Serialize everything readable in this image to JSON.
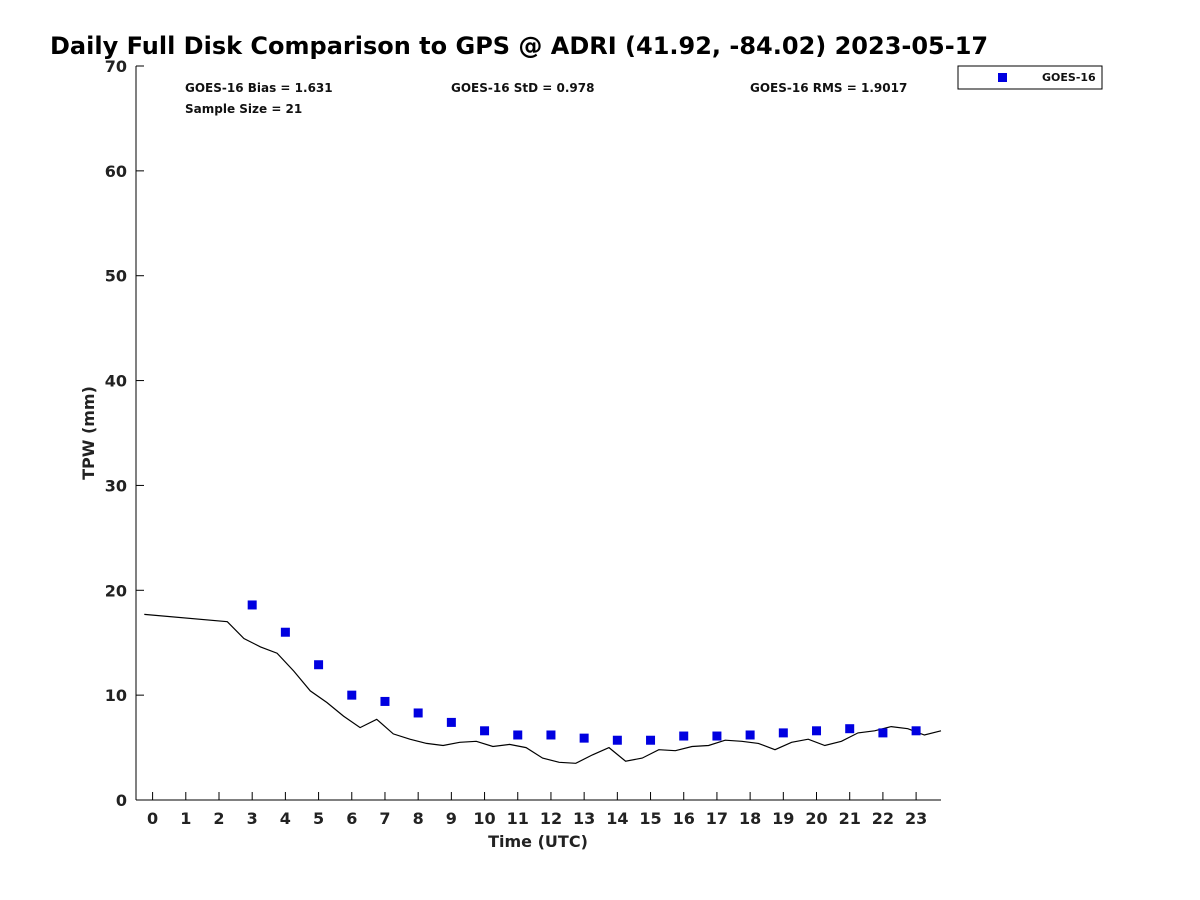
{
  "chart_data": {
    "type": "scatter",
    "title": "Daily Full Disk Comparison to GPS @ ADRI (41.92, -84.02) 2023-05-17",
    "xlabel": "Time (UTC)",
    "ylabel": "TPW (mm)",
    "xlim": [
      -0.5,
      23.75
    ],
    "ylim": [
      0,
      70
    ],
    "x_ticks": [
      0,
      1,
      2,
      3,
      4,
      5,
      6,
      7,
      8,
      9,
      10,
      11,
      12,
      13,
      14,
      15,
      16,
      17,
      18,
      19,
      20,
      21,
      22,
      23
    ],
    "y_ticks": [
      0,
      10,
      20,
      30,
      40,
      50,
      60,
      70
    ],
    "grid": false,
    "legend_position": "top-right",
    "stats": {
      "bias": "GOES-16 Bias = 1.631",
      "std": "GOES-16 StD = 0.978",
      "rms": "GOES-16 RMS = 1.9017",
      "sample": "Sample Size = 21"
    },
    "series": [
      {
        "name": "GOES-16",
        "type": "scatter",
        "color": "#0000e0",
        "marker": "square",
        "x": [
          3,
          4,
          5,
          6,
          7,
          8,
          9,
          10,
          11,
          12,
          13,
          14,
          15,
          16,
          17,
          18,
          19,
          20,
          21,
          22,
          23
        ],
        "y": [
          18.6,
          16.0,
          12.9,
          10.0,
          9.4,
          8.3,
          7.4,
          6.6,
          6.2,
          6.2,
          5.9,
          5.7,
          5.7,
          6.1,
          6.1,
          6.2,
          6.4,
          6.6,
          6.8,
          6.4,
          6.6
        ]
      },
      {
        "type": "line",
        "color": "#000000",
        "x": [
          -0.25,
          2.25,
          2.75,
          3.25,
          3.75,
          4.25,
          4.75,
          5.25,
          5.75,
          6.25,
          6.75,
          7.25,
          7.75,
          8.25,
          8.75,
          9.25,
          9.75,
          10.25,
          10.75,
          11.25,
          11.75,
          12.25,
          12.75,
          13.25,
          13.75,
          14.25,
          14.75,
          15.25,
          15.75,
          16.25,
          16.75,
          17.25,
          17.75,
          18.25,
          18.75,
          19.25,
          19.75,
          20.25,
          20.75,
          21.25,
          21.75,
          22.25,
          22.75,
          23.25,
          23.75
        ],
        "y": [
          17.7,
          17.0,
          15.4,
          14.6,
          14.0,
          12.3,
          10.4,
          9.3,
          8.0,
          6.9,
          7.7,
          6.3,
          5.8,
          5.4,
          5.2,
          5.5,
          5.6,
          5.1,
          5.3,
          5.0,
          4.0,
          3.6,
          3.5,
          4.3,
          5.0,
          3.7,
          4.0,
          4.8,
          4.7,
          5.1,
          5.2,
          5.7,
          5.6,
          5.4,
          4.8,
          5.5,
          5.8,
          5.2,
          5.6,
          6.4,
          6.6,
          7.0,
          6.8,
          6.2,
          6.6
        ]
      }
    ]
  }
}
